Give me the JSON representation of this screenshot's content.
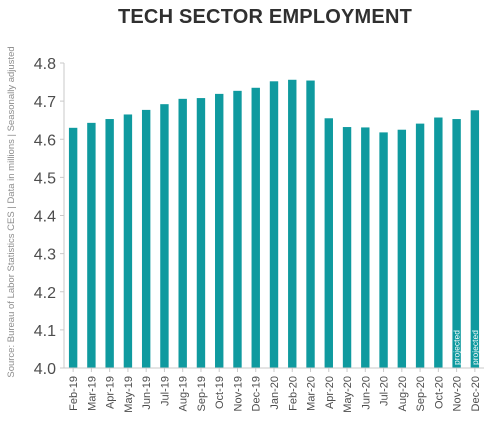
{
  "colors": {
    "bar": "#0f9a9f",
    "axis": "#c9c9c9",
    "text": "#4d4d4d",
    "source": "#8c8c8c"
  },
  "source_note": "Source: Bureau of Labor Statistics CES | Data in millions | Seasonally adjusted",
  "chart_data": {
    "type": "bar",
    "title": "TECH SECTOR EMPLOYMENT",
    "xlabel": "",
    "ylabel": "",
    "ylim": [
      4.0,
      4.8
    ],
    "yticks": [
      "4.0",
      "4.1",
      "4.2",
      "4.3",
      "4.4",
      "4.5",
      "4.6",
      "4.7",
      "4.8"
    ],
    "grid": false,
    "categories": [
      "Feb-19",
      "Mar-19",
      "Apr-19",
      "May-19",
      "Jun-19",
      "Jul-19",
      "Aug-19",
      "Sep-19",
      "Oct-19",
      "Nov-19",
      "Dec-19",
      "Jan-20",
      "Feb-20",
      "Mar-20",
      "Apr-20",
      "May-20",
      "Jun-20",
      "Jul-20",
      "Aug-20",
      "Sep-20",
      "Oct-20",
      "Nov-20",
      "Dec-20"
    ],
    "values": [
      4.63,
      4.643,
      4.653,
      4.665,
      4.677,
      4.692,
      4.706,
      4.708,
      4.719,
      4.727,
      4.735,
      4.752,
      4.756,
      4.754,
      4.655,
      4.632,
      4.631,
      4.618,
      4.625,
      4.641,
      4.657,
      4.653,
      4.676
    ],
    "annotations": [
      {
        "category": "Nov-20",
        "text": "projected"
      },
      {
        "category": "Dec-20",
        "text": "projected"
      }
    ]
  }
}
